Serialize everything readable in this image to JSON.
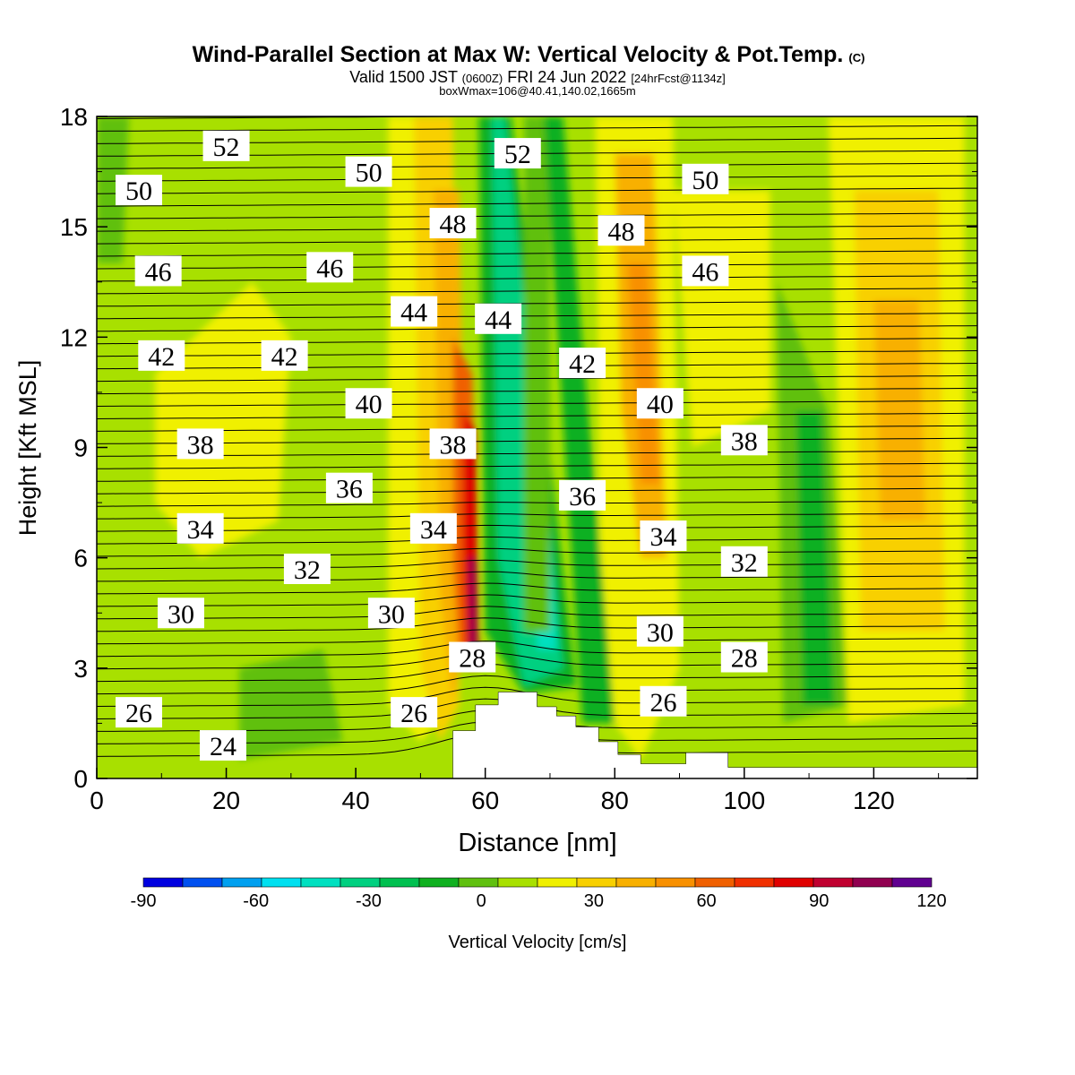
{
  "chart_data": {
    "type": "heatmap",
    "title": "Wind-Parallel Section at Max W: Vertical Velocity & Pot.Temp.",
    "title_mark": "(C)",
    "subtitle": {
      "prefix": "Valid 1500 JST",
      "utc": "(0600Z)",
      "date": "FRI 24 Jun 2022",
      "forecast": "[24hrFcst@1134z]"
    },
    "subtitle2": "boxWmax=106@40.41,140.02,1665m",
    "xlabel": "Distance [nm]",
    "ylabel": "Height [Kft MSL]",
    "xlim": [
      0,
      136
    ],
    "ylim": [
      0,
      18
    ],
    "x_ticks": [
      "0",
      "20",
      "40",
      "60",
      "80",
      "100",
      "120"
    ],
    "y_ticks": [
      "0",
      "3",
      "6",
      "9",
      "12",
      "15",
      "18"
    ],
    "colorbar": {
      "label": "Vertical Velocity [cm/s]",
      "min": -90,
      "max": 120,
      "step": 10,
      "tick_labels": [
        "-90",
        "-60",
        "-30",
        "0",
        "30",
        "60",
        "90",
        "120"
      ],
      "colors": [
        "#0000e0",
        "#0050f0",
        "#00a0f0",
        "#00e0f0",
        "#00e0c0",
        "#00d080",
        "#00c050",
        "#10b020",
        "#60c010",
        "#a8e000",
        "#f0f000",
        "#f8d000",
        "#f8b000",
        "#f89000",
        "#f06000",
        "#f03000",
        "#e00000",
        "#c00030",
        "#900050",
        "#600090"
      ]
    },
    "theta_labels": [
      {
        "x": 20,
        "y": 17.2,
        "text": "52"
      },
      {
        "x": 65,
        "y": 17.0,
        "text": "52"
      },
      {
        "x": 6.5,
        "y": 16.0,
        "text": "50"
      },
      {
        "x": 42,
        "y": 16.5,
        "text": "50"
      },
      {
        "x": 94,
        "y": 16.3,
        "text": "50"
      },
      {
        "x": 55,
        "y": 15.1,
        "text": "48"
      },
      {
        "x": 81,
        "y": 14.9,
        "text": "48"
      },
      {
        "x": 9.5,
        "y": 13.8,
        "text": "46"
      },
      {
        "x": 36,
        "y": 13.9,
        "text": "46"
      },
      {
        "x": 94,
        "y": 13.8,
        "text": "46"
      },
      {
        "x": 49,
        "y": 12.7,
        "text": "44"
      },
      {
        "x": 62,
        "y": 12.5,
        "text": "44"
      },
      {
        "x": 10,
        "y": 11.5,
        "text": "42"
      },
      {
        "x": 29,
        "y": 11.5,
        "text": "42"
      },
      {
        "x": 75,
        "y": 11.3,
        "text": "42"
      },
      {
        "x": 42,
        "y": 10.2,
        "text": "40"
      },
      {
        "x": 87,
        "y": 10.2,
        "text": "40"
      },
      {
        "x": 16,
        "y": 9.1,
        "text": "38"
      },
      {
        "x": 55,
        "y": 9.1,
        "text": "38"
      },
      {
        "x": 100,
        "y": 9.2,
        "text": "38"
      },
      {
        "x": 39,
        "y": 7.9,
        "text": "36"
      },
      {
        "x": 75,
        "y": 7.7,
        "text": "36"
      },
      {
        "x": 16,
        "y": 6.8,
        "text": "34"
      },
      {
        "x": 52,
        "y": 6.8,
        "text": "34"
      },
      {
        "x": 87.5,
        "y": 6.6,
        "text": "34"
      },
      {
        "x": 32.5,
        "y": 5.7,
        "text": "32"
      },
      {
        "x": 100,
        "y": 5.9,
        "text": "32"
      },
      {
        "x": 13,
        "y": 4.5,
        "text": "30"
      },
      {
        "x": 45.5,
        "y": 4.5,
        "text": "30"
      },
      {
        "x": 87,
        "y": 4.0,
        "text": "30"
      },
      {
        "x": 58,
        "y": 3.3,
        "text": "28"
      },
      {
        "x": 100,
        "y": 3.3,
        "text": "28"
      },
      {
        "x": 6.5,
        "y": 1.8,
        "text": "26"
      },
      {
        "x": 49,
        "y": 1.8,
        "text": "26"
      },
      {
        "x": 87.5,
        "y": 2.1,
        "text": "26"
      },
      {
        "x": 19.5,
        "y": 0.9,
        "text": "24"
      }
    ],
    "terrain": [
      [
        55,
        0
      ],
      [
        55,
        1.3
      ],
      [
        58.5,
        1.3
      ],
      [
        58.5,
        2.0
      ],
      [
        62,
        2.0
      ],
      [
        62,
        2.35
      ],
      [
        68,
        2.35
      ],
      [
        68,
        1.95
      ],
      [
        71,
        1.95
      ],
      [
        71,
        1.7
      ],
      [
        74,
        1.7
      ],
      [
        74,
        1.4
      ],
      [
        77.5,
        1.4
      ],
      [
        77.5,
        1.0
      ],
      [
        80.5,
        1.0
      ],
      [
        80.5,
        0.65
      ],
      [
        84,
        0.65
      ],
      [
        84,
        0.4
      ],
      [
        91,
        0.4
      ],
      [
        91,
        0.7
      ],
      [
        97.5,
        0.7
      ],
      [
        97.5,
        0.3
      ],
      [
        136,
        0.3
      ],
      [
        136,
        0
      ],
      [
        0,
        0
      ]
    ]
  }
}
